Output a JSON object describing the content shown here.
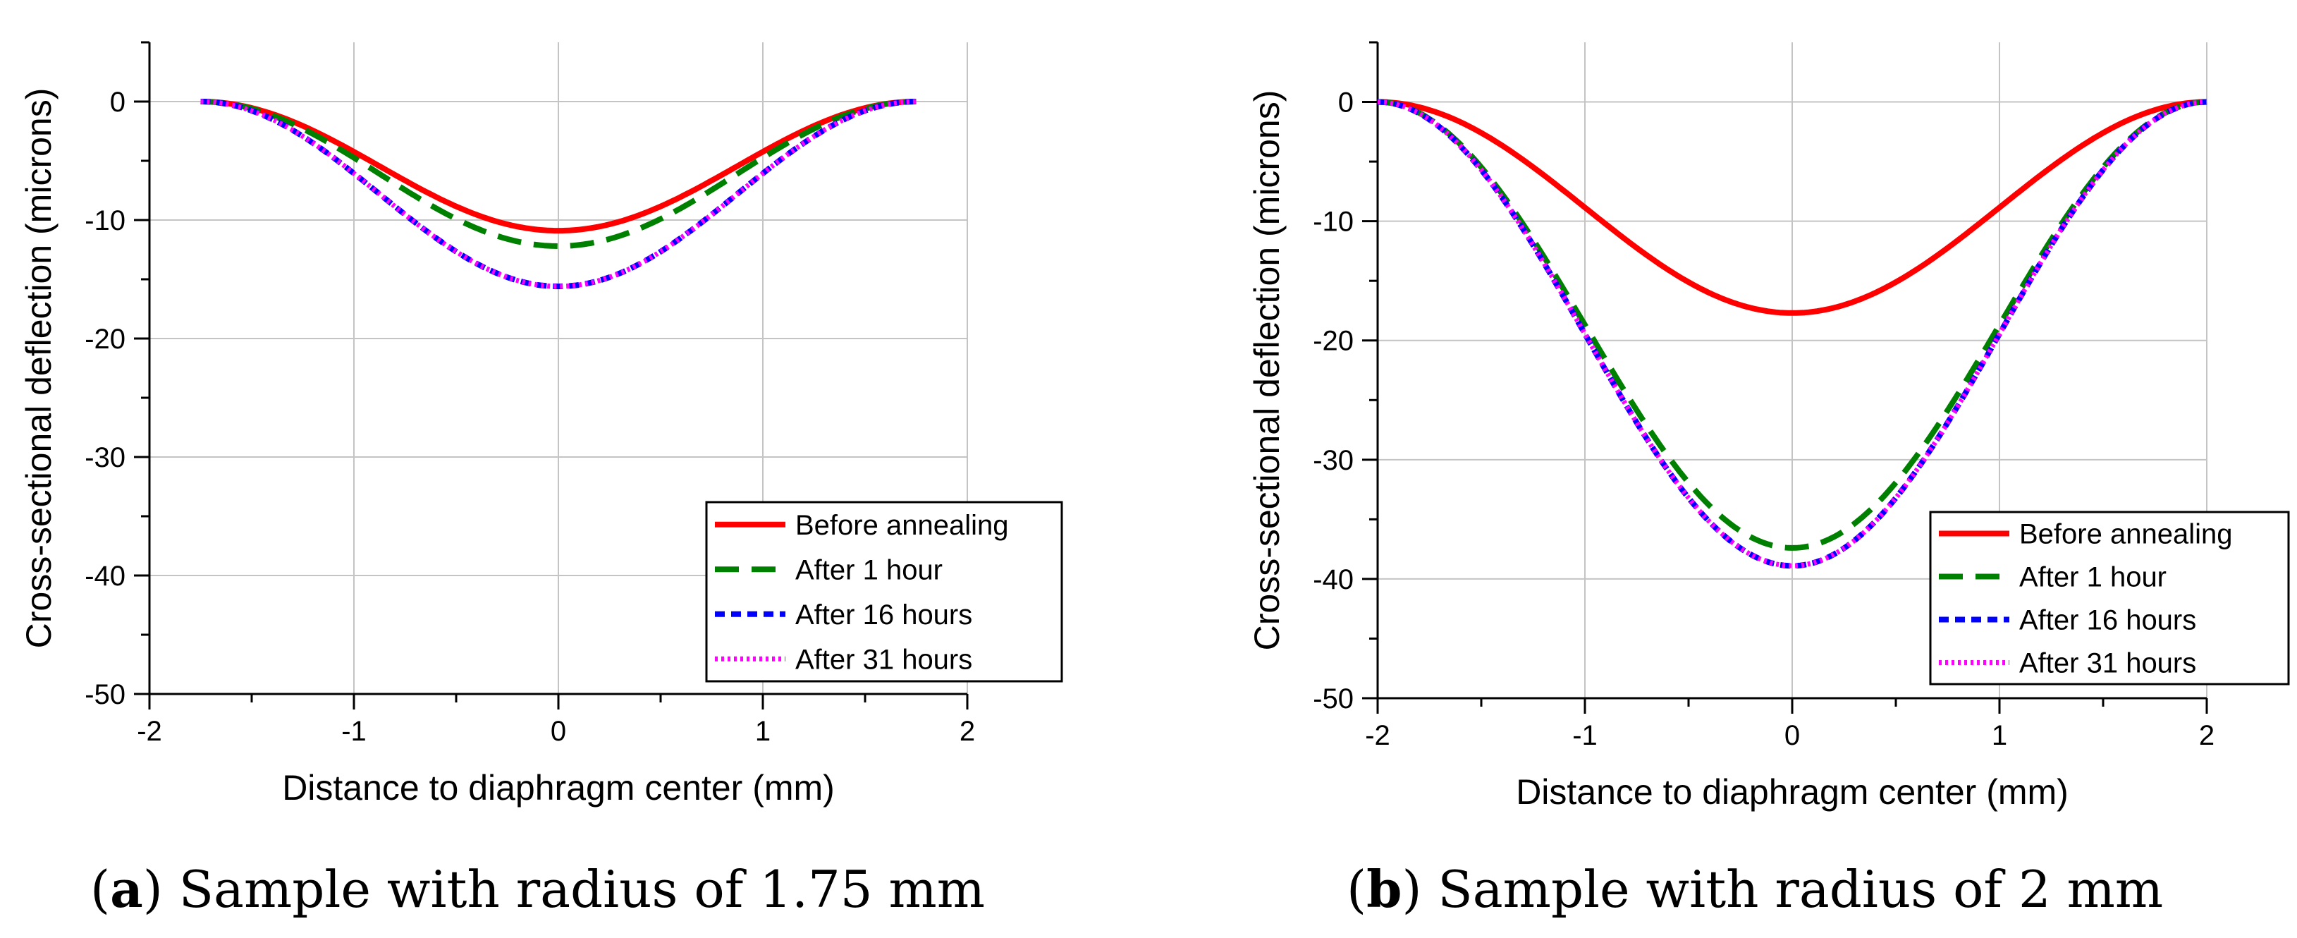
{
  "figure": {
    "captions": [
      {
        "letter": "a",
        "open": "(",
        "close": ")",
        "text": " Sample with radius of 1.75 mm"
      },
      {
        "letter": "b",
        "open": "(",
        "close": ")",
        "text": " Sample with radius of 2 mm"
      }
    ]
  },
  "chart_data": [
    {
      "type": "line",
      "title": "",
      "xlabel": "Distance to diaphragm center (mm)",
      "ylabel": "Cross-sectional deflection (microns)",
      "xlim": [
        -2,
        2
      ],
      "ylim": [
        -50,
        5
      ],
      "xticks": [
        -2,
        -1,
        0,
        1,
        2
      ],
      "yticks": [
        0,
        -10,
        -20,
        -30,
        -40,
        -50
      ],
      "xtick_labels": [
        "-2",
        "-1",
        "0",
        "1",
        "2"
      ],
      "ytick_labels": [
        "0",
        "-10",
        "-20",
        "-30",
        "-40",
        "-50"
      ],
      "grid": true,
      "legend_position": "bottom-right",
      "radius": 1.75,
      "series": [
        {
          "name": "Before annealing",
          "color": "#ff0000",
          "style": "solid",
          "x": [
            -1.75,
            -1.5,
            -1.25,
            -1.0,
            -0.75,
            -0.5,
            -0.25,
            0,
            0.25,
            0.5,
            0.75,
            1.0,
            1.25,
            1.5,
            1.75
          ],
          "y": [
            0,
            -0.9,
            -2.7,
            -5.1,
            -7.6,
            -9.4,
            -10.5,
            -10.9,
            -10.5,
            -9.4,
            -7.6,
            -5.1,
            -2.7,
            -0.9,
            0
          ]
        },
        {
          "name": "After 1 hour",
          "color": "#008000",
          "style": "dashed",
          "x": [
            -1.75,
            -1.5,
            -1.25,
            -1.0,
            -0.75,
            -0.5,
            -0.25,
            0,
            0.25,
            0.5,
            0.75,
            1.0,
            1.25,
            1.5,
            1.75
          ],
          "y": [
            0,
            -1.0,
            -3.1,
            -5.8,
            -8.5,
            -10.6,
            -11.8,
            -12.2,
            -11.8,
            -10.6,
            -8.5,
            -5.8,
            -3.1,
            -1.0,
            0
          ]
        },
        {
          "name": "After 16 hours",
          "color": "#0000ff",
          "style": "dashed-short",
          "x": [
            -1.75,
            -1.5,
            -1.25,
            -1.0,
            -0.75,
            -0.5,
            -0.25,
            0,
            0.25,
            0.5,
            0.75,
            1.0,
            1.25,
            1.5,
            1.75
          ],
          "y": [
            0,
            -1.3,
            -3.9,
            -7.3,
            -10.8,
            -13.6,
            -15.1,
            -15.6,
            -15.1,
            -13.6,
            -10.8,
            -7.3,
            -3.9,
            -1.3,
            0
          ]
        },
        {
          "name": "After 31 hours",
          "color": "#ff00ff",
          "style": "dotted",
          "x": [
            -1.75,
            -1.5,
            -1.25,
            -1.0,
            -0.75,
            -0.5,
            -0.25,
            0,
            0.25,
            0.5,
            0.75,
            1.0,
            1.25,
            1.5,
            1.75
          ],
          "y": [
            0,
            -1.3,
            -3.9,
            -7.3,
            -10.8,
            -13.6,
            -15.1,
            -15.6,
            -15.1,
            -13.6,
            -10.8,
            -7.3,
            -3.9,
            -1.3,
            0
          ]
        }
      ]
    },
    {
      "type": "line",
      "title": "",
      "xlabel": "Distance to diaphragm center (mm)",
      "ylabel": "Cross-sectional deflection (microns)",
      "xlim": [
        -2,
        2
      ],
      "ylim": [
        -50,
        5
      ],
      "xticks": [
        -2,
        -1,
        0,
        1,
        2
      ],
      "yticks": [
        0,
        -10,
        -20,
        -30,
        -40,
        -50
      ],
      "xtick_labels": [
        "-2",
        "-1",
        "0",
        "1",
        "2"
      ],
      "ytick_labels": [
        "0",
        "-10",
        "-20",
        "-30",
        "-40",
        "-50"
      ],
      "grid": true,
      "legend_position": "bottom-right",
      "radius": 2.0,
      "series": [
        {
          "name": "Before annealing",
          "color": "#ff0000",
          "style": "solid",
          "x": [
            -2.0,
            -1.75,
            -1.5,
            -1.25,
            -1.0,
            -0.75,
            -0.5,
            -0.25,
            0,
            0.25,
            0.5,
            0.75,
            1.0,
            1.25,
            1.5,
            1.75,
            2.0
          ],
          "y": [
            0,
            -1.3,
            -4.0,
            -7.2,
            -10.3,
            -13.4,
            -15.8,
            -17.2,
            -17.7,
            -17.2,
            -15.8,
            -13.4,
            -10.3,
            -7.2,
            -4.0,
            -1.3,
            0
          ]
        },
        {
          "name": "After 1 hour",
          "color": "#008000",
          "style": "dashed",
          "x": [
            -2.0,
            -1.75,
            -1.5,
            -1.25,
            -1.0,
            -0.75,
            -0.5,
            -0.25,
            0,
            0.25,
            0.5,
            0.75,
            1.0,
            1.25,
            1.5,
            1.75,
            2.0
          ],
          "y": [
            0,
            -3.0,
            -9.0,
            -15.5,
            -21.5,
            -27.8,
            -33.2,
            -36.4,
            -37.4,
            -36.4,
            -33.2,
            -27.8,
            -21.5,
            -15.5,
            -9.0,
            -3.0,
            0
          ]
        },
        {
          "name": "After 16 hours",
          "color": "#0000ff",
          "style": "dashed-short",
          "x": [
            -2.0,
            -1.75,
            -1.5,
            -1.25,
            -1.0,
            -0.75,
            -0.5,
            -0.25,
            0,
            0.25,
            0.5,
            0.75,
            1.0,
            1.25,
            1.5,
            1.75,
            2.0
          ],
          "y": [
            0,
            -3.1,
            -9.3,
            -16.0,
            -22.3,
            -28.8,
            -34.4,
            -37.8,
            -38.9,
            -37.8,
            -34.4,
            -28.8,
            -22.3,
            -16.0,
            -9.3,
            -3.1,
            0
          ]
        },
        {
          "name": "After 31 hours",
          "color": "#ff00ff",
          "style": "dotted",
          "x": [
            -2.0,
            -1.75,
            -1.5,
            -1.25,
            -1.0,
            -0.75,
            -0.5,
            -0.25,
            0,
            0.25,
            0.5,
            0.75,
            1.0,
            1.25,
            1.5,
            1.75,
            2.0
          ],
          "y": [
            0,
            -3.1,
            -9.3,
            -16.0,
            -22.3,
            -28.8,
            -34.4,
            -37.8,
            -38.9,
            -37.8,
            -34.4,
            -28.8,
            -22.3,
            -16.0,
            -9.3,
            -3.1,
            0
          ]
        }
      ]
    }
  ]
}
